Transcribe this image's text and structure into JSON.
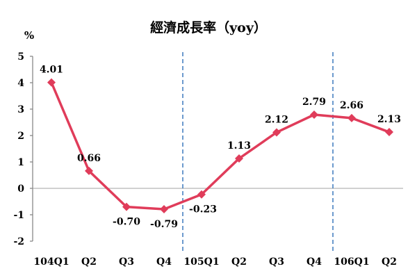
{
  "chart_data": {
    "type": "line",
    "title": "經濟成長率（yoy）",
    "ylabel": "%",
    "xlabel": "",
    "ylim": [
      -2,
      5
    ],
    "yticks": [
      -2,
      -1,
      0,
      1,
      2,
      3,
      4,
      5
    ],
    "categories": [
      "104Q1",
      "Q2",
      "Q3",
      "Q4",
      "105Q1",
      "Q2",
      "Q3",
      "Q4",
      "106Q1",
      "Q2"
    ],
    "series": [
      {
        "values": [
          4.01,
          0.66,
          -0.7,
          -0.79,
          -0.23,
          1.13,
          2.12,
          2.79,
          2.66,
          2.13
        ],
        "labels": [
          "4.01",
          "0.66",
          "-0.70",
          "-0.79",
          "-0.23",
          "1.13",
          "2.12",
          "2.79",
          "2.66",
          "2.13"
        ],
        "color": "#e03c5a"
      }
    ],
    "year_dividers_after_index": [
      3,
      7
    ],
    "divider_color": "#2e6fb8",
    "grid": false
  }
}
